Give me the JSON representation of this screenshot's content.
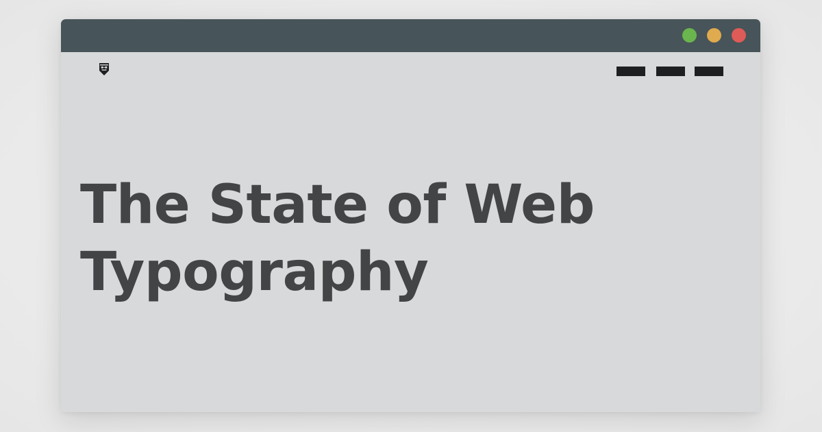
{
  "window": {
    "titlebar_color": "#475459",
    "content_bg": "#d8d9da",
    "controls": [
      {
        "name": "maximize",
        "color": "#6ab54d"
      },
      {
        "name": "minimize",
        "color": "#e0aa4f"
      },
      {
        "name": "close",
        "color": "#de5b57"
      }
    ]
  },
  "header": {
    "logo_icon": "mustache-shield-icon",
    "nav_color": "#1e1f20",
    "nav_items": [
      "menu-item",
      "menu-item",
      "menu-item"
    ]
  },
  "hero": {
    "title_line1": "The State of Web",
    "title_line2": "Typography",
    "title_color": "#434446"
  }
}
